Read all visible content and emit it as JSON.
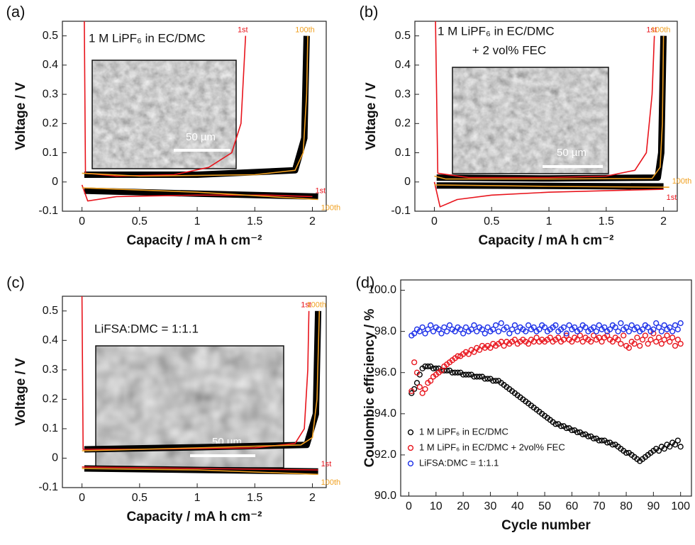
{
  "chart_data": [
    {
      "type": "line",
      "panel": "(a)",
      "xlabel": "Capacity / mA h cm⁻²",
      "ylabel": "Voltage / V",
      "annotation": [
        "1 M LiPF₆ in EC/DMC"
      ],
      "scale_bar": "50 µm",
      "xlim": [
        -0.17,
        2.12
      ],
      "ylim": [
        -0.1,
        0.55
      ],
      "xticks": [
        0,
        0.5,
        1,
        1.5,
        2
      ],
      "yticks": [
        -0.1,
        0,
        0.1,
        0.2,
        0.3,
        0.4,
        0.5
      ],
      "series": [
        {
          "color": "#000000",
          "x": [
            0.02,
            1,
            1.85,
            1.93,
            1.95
          ],
          "values": [
            0.025,
            0.025,
            0.04,
            0.15,
            0.5
          ]
        },
        {
          "color": "#000000",
          "x": [
            0.02,
            1,
            2.05
          ],
          "values": [
            -0.03,
            -0.04,
            -0.05
          ]
        },
        {
          "name": "1st",
          "color": "#e8141c",
          "x": [
            0.02,
            0.03,
            0.3,
            0.8,
            1.1,
            1.3,
            1.38,
            1.42
          ],
          "values": [
            0.55,
            0.03,
            0.02,
            0.025,
            0.05,
            0.1,
            0.2,
            0.5
          ]
        },
        {
          "name": "1st",
          "color": "#e8141c",
          "x": [
            0,
            0.05,
            0.3,
            1,
            1.6,
            2.0
          ],
          "values": [
            -0.01,
            -0.065,
            -0.05,
            -0.045,
            -0.045,
            -0.05
          ]
        },
        {
          "name": "100th",
          "color": "#f0a020",
          "x": [
            0,
            0.5,
            1.5,
            1.85,
            1.92,
            1.95,
            1.96
          ],
          "values": [
            0.03,
            0.02,
            0.025,
            0.04,
            0.1,
            0.3,
            0.5
          ]
        },
        {
          "name": "100th",
          "color": "#f0a020",
          "x": [
            0,
            1,
            2.05
          ],
          "values": [
            -0.02,
            -0.035,
            -0.06
          ]
        }
      ]
    },
    {
      "type": "line",
      "panel": "(b)",
      "xlabel": "Capacity / mA h cm⁻²",
      "ylabel": "Voltage / V",
      "annotation": [
        "1 M LiPF₆ in EC/DMC",
        "+ 2 vol% FEC"
      ],
      "scale_bar": "50 µm",
      "xlim": [
        -0.17,
        2.12
      ],
      "ylim": [
        -0.1,
        0.55
      ],
      "xticks": [
        0,
        0.5,
        1,
        1.5,
        2
      ],
      "yticks": [
        -0.1,
        0,
        0.1,
        0.2,
        0.3,
        0.4,
        0.5
      ],
      "series": [
        {
          "color": "#000000",
          "x": [
            0.02,
            1,
            1.95,
            1.98,
            2.0
          ],
          "values": [
            0.015,
            0.012,
            0.015,
            0.1,
            0.5
          ]
        },
        {
          "color": "#000000",
          "x": [
            0.02,
            2.0
          ],
          "values": [
            -0.012,
            -0.015
          ]
        },
        {
          "name": "1st",
          "color": "#e8141c",
          "x": [
            0.01,
            0.03,
            0.3,
            1,
            1.5,
            1.75,
            1.85,
            1.9,
            1.92
          ],
          "values": [
            0.55,
            0.03,
            0.015,
            0.015,
            0.02,
            0.04,
            0.1,
            0.3,
            0.5
          ]
        },
        {
          "name": "1st",
          "color": "#e8141c",
          "x": [
            0,
            0.05,
            0.2,
            0.5,
            1,
            1.5,
            2.0
          ],
          "values": [
            0,
            -0.085,
            -0.06,
            -0.045,
            -0.035,
            -0.03,
            -0.025
          ]
        },
        {
          "name": "100th",
          "color": "#f0a020",
          "x": [
            0,
            0.1,
            1,
            1.9,
            1.97,
            1.99,
            2.0
          ],
          "values": [
            0.02,
            0.01,
            0.01,
            0.012,
            0.05,
            0.2,
            0.5
          ]
        },
        {
          "name": "100th",
          "color": "#f0a020",
          "x": [
            0,
            1,
            2.05
          ],
          "values": [
            -0.01,
            -0.015,
            -0.018
          ]
        }
      ]
    },
    {
      "type": "line",
      "panel": "(c)",
      "xlabel": "Capacity / mA h cm⁻²",
      "ylabel": "Voltage / V",
      "annotation": [
        "LiFSA:DMC = 1:1.1"
      ],
      "scale_bar": "50 µm",
      "xlim": [
        -0.17,
        2.12
      ],
      "ylim": [
        -0.1,
        0.55
      ],
      "xticks": [
        0,
        0.5,
        1,
        1.5,
        2
      ],
      "yticks": [
        -0.1,
        0,
        0.1,
        0.2,
        0.3,
        0.4,
        0.5
      ],
      "series": [
        {
          "color": "#000000",
          "x": [
            0.02,
            1,
            1.95,
            2.03,
            2.05
          ],
          "values": [
            0.03,
            0.037,
            0.045,
            0.15,
            0.5
          ]
        },
        {
          "color": "#000000",
          "x": [
            0.02,
            2.05
          ],
          "values": [
            -0.035,
            -0.045
          ]
        },
        {
          "name": "1st",
          "color": "#e8141c",
          "x": [
            0,
            0.01,
            0.5,
            1.5,
            1.85,
            1.93,
            1.96,
            1.97
          ],
          "values": [
            0.55,
            0.03,
            0.03,
            0.035,
            0.05,
            0.1,
            0.3,
            0.5
          ]
        },
        {
          "name": "1st",
          "color": "#e8141c",
          "x": [
            0,
            1,
            2.05
          ],
          "values": [
            -0.03,
            -0.035,
            -0.04
          ]
        },
        {
          "name": "100th",
          "color": "#f0a020",
          "x": [
            0,
            1,
            1.9,
            2.0,
            2.04,
            2.06
          ],
          "values": [
            0.025,
            0.035,
            0.045,
            0.07,
            0.2,
            0.5
          ]
        },
        {
          "name": "100th",
          "color": "#f0a020",
          "x": [
            0,
            1,
            2.05
          ],
          "values": [
            -0.035,
            -0.04,
            -0.055
          ]
        }
      ]
    },
    {
      "type": "scatter",
      "panel": "(d)",
      "xlabel": "Cycle number",
      "ylabel": "Coulombic efficiency / %",
      "legend": "lower left",
      "xlim": [
        -3,
        104
      ],
      "ylim": [
        90,
        100.5
      ],
      "xticks": [
        0,
        10,
        20,
        30,
        40,
        50,
        60,
        70,
        80,
        90,
        100
      ],
      "yticks": [
        {
          "value": 90,
          "label": "90.0"
        },
        {
          "value": 92,
          "label": "92.0"
        },
        {
          "value": 94,
          "label": "94.0"
        },
        {
          "value": 96,
          "label": "96.0"
        },
        {
          "value": 98,
          "label": "98.0"
        },
        {
          "value": 100,
          "label": "100.0"
        }
      ],
      "x": [
        1,
        2,
        3,
        4,
        5,
        6,
        7,
        8,
        9,
        10,
        11,
        12,
        13,
        14,
        15,
        16,
        17,
        18,
        19,
        20,
        21,
        22,
        23,
        24,
        25,
        26,
        27,
        28,
        29,
        30,
        31,
        32,
        33,
        34,
        35,
        36,
        37,
        38,
        39,
        40,
        41,
        42,
        43,
        44,
        45,
        46,
        47,
        48,
        49,
        50,
        51,
        52,
        53,
        54,
        55,
        56,
        57,
        58,
        59,
        60,
        61,
        62,
        63,
        64,
        65,
        66,
        67,
        68,
        69,
        70,
        71,
        72,
        73,
        74,
        75,
        76,
        77,
        78,
        79,
        80,
        81,
        82,
        83,
        84,
        85,
        86,
        87,
        88,
        89,
        90,
        91,
        92,
        93,
        94,
        95,
        96,
        97,
        98,
        99,
        100
      ],
      "series": [
        {
          "name": "1 M LiPF₆ in EC/DMC",
          "color": "#000000",
          "values": [
            95.0,
            95.2,
            95.5,
            95.9,
            96.2,
            96.3,
            96.3,
            96.3,
            96.2,
            96.2,
            96.2,
            96.1,
            96.1,
            96.1,
            96.1,
            96.0,
            96.0,
            96.0,
            96.0,
            95.9,
            95.9,
            95.9,
            95.9,
            95.8,
            95.8,
            95.8,
            95.8,
            95.7,
            95.7,
            95.7,
            95.6,
            95.6,
            95.6,
            95.5,
            95.4,
            95.3,
            95.2,
            95.1,
            95.0,
            94.9,
            94.8,
            94.7,
            94.6,
            94.5,
            94.4,
            94.3,
            94.2,
            94.1,
            94.0,
            93.9,
            93.8,
            93.7,
            93.6,
            93.5,
            93.5,
            93.4,
            93.4,
            93.3,
            93.3,
            93.2,
            93.2,
            93.1,
            93.1,
            93.0,
            93.0,
            92.9,
            92.9,
            92.8,
            92.8,
            92.7,
            92.7,
            92.7,
            92.6,
            92.6,
            92.5,
            92.5,
            92.4,
            92.3,
            92.2,
            92.1,
            92.1,
            92.0,
            91.9,
            91.8,
            91.7,
            91.8,
            91.9,
            92.0,
            92.1,
            92.2,
            92.3,
            92.2,
            92.4,
            92.3,
            92.5,
            92.4,
            92.6,
            92.5,
            92.7,
            92.4
          ]
        },
        {
          "name": "1 M LiPF₆ in EC/DMC + 2vol% FEC",
          "color": "#e8141c",
          "values": [
            95.1,
            96.5,
            96.0,
            95.3,
            95.0,
            95.2,
            95.5,
            95.6,
            95.8,
            95.9,
            96.0,
            96.1,
            96.3,
            96.4,
            96.5,
            96.6,
            96.7,
            96.8,
            96.8,
            96.9,
            97.0,
            96.9,
            97.1,
            97.0,
            97.2,
            97.1,
            97.3,
            97.2,
            97.3,
            97.2,
            97.4,
            97.3,
            97.4,
            97.5,
            97.3,
            97.5,
            97.4,
            97.5,
            97.6,
            97.4,
            97.5,
            97.6,
            97.5,
            97.4,
            97.6,
            97.5,
            97.7,
            97.5,
            97.6,
            97.5,
            97.6,
            97.7,
            97.5,
            97.6,
            97.7,
            97.5,
            97.6,
            97.8,
            97.6,
            97.5,
            97.7,
            97.6,
            97.8,
            97.5,
            97.7,
            97.6,
            97.5,
            97.8,
            97.6,
            97.7,
            97.5,
            97.7,
            97.8,
            97.6,
            97.5,
            97.7,
            97.6,
            97.4,
            97.8,
            97.3,
            97.2,
            97.5,
            97.4,
            97.7,
            97.3,
            97.6,
            97.8,
            97.4,
            97.6,
            97.9,
            97.5,
            97.7,
            97.4,
            97.6,
            97.8,
            97.5,
            97.7,
            97.3,
            97.6,
            97.4
          ]
        },
        {
          "name": "LiFSA:DMC = 1:1.1",
          "color": "#1a2ee8",
          "values": [
            97.8,
            97.9,
            98.1,
            98.0,
            98.2,
            97.9,
            98.1,
            98.3,
            98.0,
            98.2,
            98.1,
            97.9,
            98.2,
            98.0,
            98.3,
            98.1,
            98.0,
            98.2,
            98.1,
            97.9,
            98.2,
            98.0,
            98.1,
            98.3,
            98.0,
            98.2,
            98.1,
            97.9,
            98.2,
            98.0,
            98.1,
            98.3,
            98.0,
            98.4,
            98.1,
            98.2,
            97.9,
            98.1,
            98.3,
            98.0,
            98.2,
            98.1,
            98.0,
            98.3,
            98.1,
            98.2,
            98.0,
            98.1,
            98.3,
            98.2,
            98.0,
            98.1,
            98.2,
            98.3,
            98.0,
            98.1,
            98.2,
            97.9,
            98.3,
            98.1,
            98.2,
            98.0,
            98.1,
            98.3,
            98.2,
            98.0,
            98.1,
            98.2,
            98.0,
            98.3,
            98.1,
            98.2,
            98.0,
            98.1,
            98.3,
            98.2,
            98.0,
            98.4,
            98.1,
            98.2,
            98.0,
            98.3,
            98.1,
            98.2,
            98.0,
            98.1,
            98.3,
            98.2,
            98.0,
            98.1,
            98.4,
            98.2,
            98.0,
            98.3,
            98.1,
            98.2,
            98.0,
            98.3,
            98.1,
            98.4
          ]
        }
      ]
    }
  ]
}
